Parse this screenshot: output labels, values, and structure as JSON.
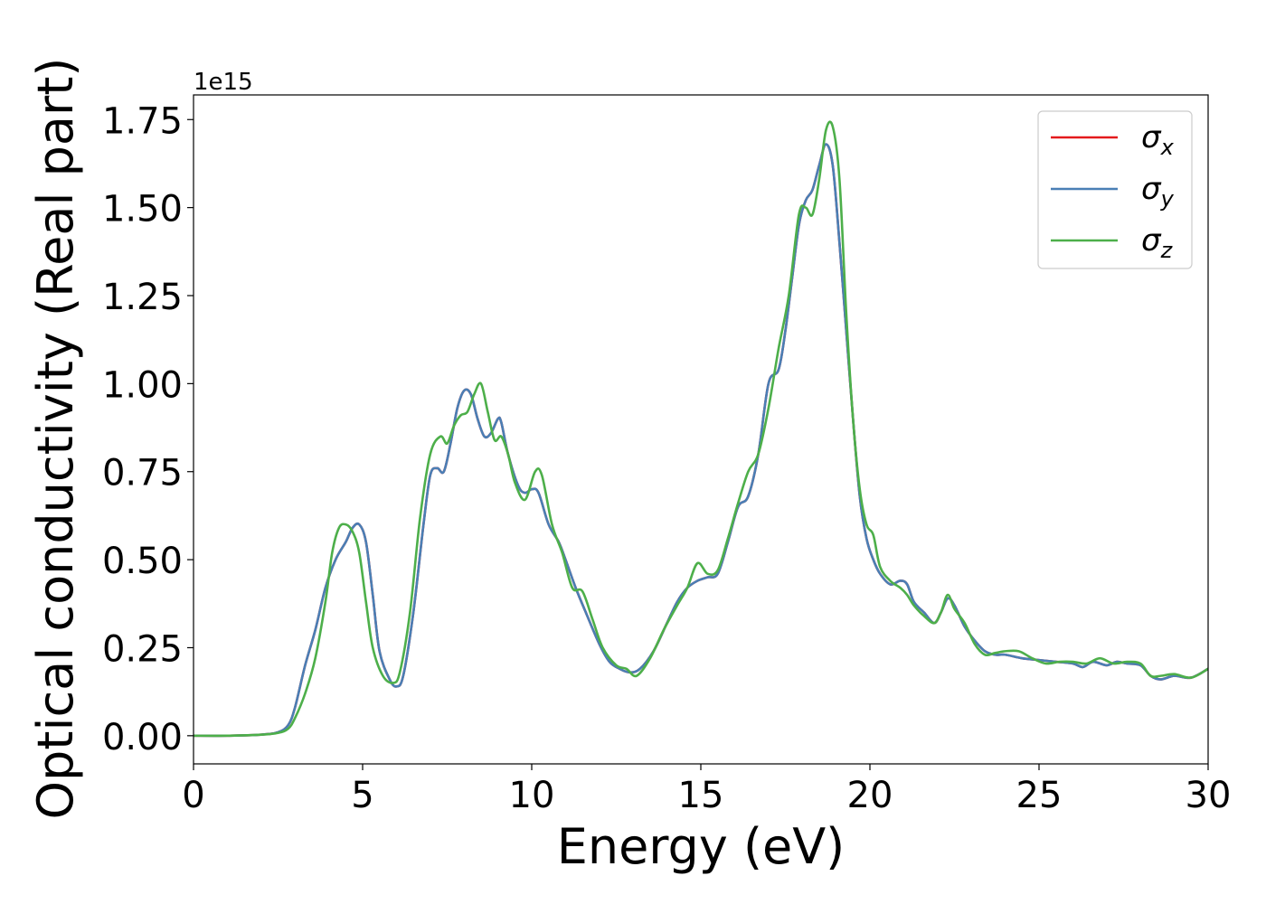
{
  "chart_data": {
    "type": "line",
    "xlabel": "Energy (eV)",
    "ylabel": "Optical conductivity (Real part)",
    "y_offset_label": "1e15",
    "xlim": [
      0,
      30
    ],
    "ylim": [
      -0.08,
      1.82
    ],
    "xticks": [
      0,
      5,
      10,
      15,
      20,
      25,
      30
    ],
    "xtick_labels": [
      "0",
      "5",
      "10",
      "15",
      "20",
      "25",
      "30"
    ],
    "yticks": [
      0.0,
      0.25,
      0.5,
      0.75,
      1.0,
      1.25,
      1.5,
      1.75
    ],
    "ytick_labels": [
      "0.00",
      "0.25",
      "0.50",
      "0.75",
      "1.00",
      "1.25",
      "1.50",
      "1.75"
    ],
    "grid": false,
    "legend_position": "top-right",
    "series": [
      {
        "name": "σx",
        "legend_symbol": "σ",
        "legend_sub": "x",
        "color": "#e41a1c",
        "x": [
          0,
          1,
          2,
          2.5,
          2.8,
          3.0,
          3.3,
          3.6,
          3.9,
          4.2,
          4.5,
          4.7,
          4.9,
          5.1,
          5.3,
          5.5,
          5.8,
          6.0,
          6.2,
          6.5,
          6.8,
          7.0,
          7.2,
          7.4,
          7.6,
          7.8,
          8.0,
          8.2,
          8.4,
          8.6,
          8.8,
          9.0,
          9.1,
          9.3,
          9.6,
          9.8,
          10.0,
          10.2,
          10.5,
          10.8,
          11.0,
          11.3,
          11.6,
          12.0,
          12.3,
          12.6,
          12.9,
          13.2,
          13.6,
          14.0,
          14.3,
          14.6,
          14.9,
          15.2,
          15.5,
          15.8,
          16.1,
          16.4,
          16.7,
          17.0,
          17.3,
          17.5,
          17.7,
          17.9,
          18.1,
          18.3,
          18.5,
          18.7,
          18.9,
          19.1,
          19.3,
          19.5,
          19.7,
          19.9,
          20.1,
          20.3,
          20.6,
          20.9,
          21.1,
          21.3,
          21.6,
          21.9,
          22.1,
          22.3,
          22.5,
          22.8,
          23.1,
          23.4,
          23.7,
          24.0,
          24.5,
          25.0,
          25.5,
          26.0,
          26.3,
          26.6,
          27.0,
          27.3,
          27.6,
          28.0,
          28.3,
          28.6,
          29.0,
          29.5,
          30.0
        ],
        "values": [
          0.0,
          0.0,
          0.003,
          0.01,
          0.03,
          0.08,
          0.2,
          0.3,
          0.42,
          0.5,
          0.55,
          0.59,
          0.6,
          0.55,
          0.4,
          0.24,
          0.16,
          0.14,
          0.17,
          0.35,
          0.6,
          0.74,
          0.76,
          0.75,
          0.83,
          0.93,
          0.98,
          0.97,
          0.9,
          0.85,
          0.86,
          0.9,
          0.89,
          0.8,
          0.71,
          0.69,
          0.7,
          0.69,
          0.6,
          0.55,
          0.5,
          0.42,
          0.35,
          0.26,
          0.21,
          0.19,
          0.18,
          0.19,
          0.24,
          0.32,
          0.38,
          0.42,
          0.44,
          0.45,
          0.46,
          0.55,
          0.65,
          0.68,
          0.8,
          1.0,
          1.04,
          1.15,
          1.3,
          1.45,
          1.52,
          1.55,
          1.62,
          1.68,
          1.62,
          1.4,
          1.15,
          0.9,
          0.68,
          0.56,
          0.5,
          0.46,
          0.43,
          0.44,
          0.43,
          0.38,
          0.35,
          0.32,
          0.35,
          0.39,
          0.37,
          0.31,
          0.27,
          0.24,
          0.23,
          0.23,
          0.22,
          0.215,
          0.21,
          0.205,
          0.195,
          0.21,
          0.2,
          0.21,
          0.205,
          0.2,
          0.17,
          0.16,
          0.17,
          0.165,
          0.19
        ]
      },
      {
        "name": "σy",
        "legend_symbol": "σ",
        "legend_sub": "y",
        "color": "#4a7fb5",
        "x": [
          0,
          1,
          2,
          2.5,
          2.8,
          3.0,
          3.3,
          3.6,
          3.9,
          4.2,
          4.5,
          4.7,
          4.9,
          5.1,
          5.3,
          5.5,
          5.8,
          6.0,
          6.2,
          6.5,
          6.8,
          7.0,
          7.2,
          7.4,
          7.6,
          7.8,
          8.0,
          8.2,
          8.4,
          8.6,
          8.8,
          9.0,
          9.1,
          9.3,
          9.6,
          9.8,
          10.0,
          10.2,
          10.5,
          10.8,
          11.0,
          11.3,
          11.6,
          12.0,
          12.3,
          12.6,
          12.9,
          13.2,
          13.6,
          14.0,
          14.3,
          14.6,
          14.9,
          15.2,
          15.5,
          15.8,
          16.1,
          16.4,
          16.7,
          17.0,
          17.3,
          17.5,
          17.7,
          17.9,
          18.1,
          18.3,
          18.5,
          18.7,
          18.9,
          19.1,
          19.3,
          19.5,
          19.7,
          19.9,
          20.1,
          20.3,
          20.6,
          20.9,
          21.1,
          21.3,
          21.6,
          21.9,
          22.1,
          22.3,
          22.5,
          22.8,
          23.1,
          23.4,
          23.7,
          24.0,
          24.5,
          25.0,
          25.5,
          26.0,
          26.3,
          26.6,
          27.0,
          27.3,
          27.6,
          28.0,
          28.3,
          28.6,
          29.0,
          29.5,
          30.0
        ],
        "values": [
          0.0,
          0.0,
          0.003,
          0.01,
          0.03,
          0.08,
          0.2,
          0.3,
          0.42,
          0.5,
          0.55,
          0.59,
          0.6,
          0.55,
          0.4,
          0.24,
          0.16,
          0.14,
          0.17,
          0.35,
          0.6,
          0.74,
          0.76,
          0.75,
          0.83,
          0.93,
          0.98,
          0.97,
          0.9,
          0.85,
          0.86,
          0.9,
          0.89,
          0.8,
          0.71,
          0.69,
          0.7,
          0.69,
          0.6,
          0.55,
          0.5,
          0.42,
          0.35,
          0.26,
          0.21,
          0.19,
          0.18,
          0.19,
          0.24,
          0.32,
          0.38,
          0.42,
          0.44,
          0.45,
          0.46,
          0.55,
          0.65,
          0.68,
          0.8,
          1.0,
          1.04,
          1.15,
          1.3,
          1.45,
          1.52,
          1.55,
          1.62,
          1.68,
          1.62,
          1.4,
          1.15,
          0.9,
          0.68,
          0.56,
          0.5,
          0.46,
          0.43,
          0.44,
          0.43,
          0.38,
          0.35,
          0.32,
          0.35,
          0.39,
          0.37,
          0.31,
          0.27,
          0.24,
          0.23,
          0.23,
          0.22,
          0.215,
          0.21,
          0.205,
          0.195,
          0.21,
          0.2,
          0.21,
          0.205,
          0.2,
          0.17,
          0.16,
          0.17,
          0.165,
          0.19
        ]
      },
      {
        "name": "σz",
        "legend_symbol": "σ",
        "legend_sub": "z",
        "color": "#4daf4a",
        "x": [
          0,
          1,
          2,
          2.5,
          2.8,
          3.0,
          3.3,
          3.6,
          3.9,
          4.1,
          4.3,
          4.5,
          4.7,
          4.9,
          5.1,
          5.3,
          5.6,
          5.9,
          6.1,
          6.4,
          6.7,
          7.0,
          7.3,
          7.5,
          7.7,
          7.9,
          8.1,
          8.3,
          8.5,
          8.7,
          8.9,
          9.1,
          9.3,
          9.5,
          9.8,
          10.1,
          10.3,
          10.6,
          10.9,
          11.2,
          11.5,
          11.8,
          12.1,
          12.5,
          12.8,
          13.1,
          13.5,
          13.9,
          14.3,
          14.6,
          14.9,
          15.2,
          15.5,
          15.8,
          16.1,
          16.4,
          16.7,
          17.0,
          17.3,
          17.6,
          17.9,
          18.1,
          18.3,
          18.5,
          18.7,
          18.9,
          19.1,
          19.3,
          19.5,
          19.7,
          19.9,
          20.1,
          20.3,
          20.6,
          20.9,
          21.1,
          21.3,
          21.6,
          21.9,
          22.1,
          22.3,
          22.5,
          22.8,
          23.1,
          23.4,
          23.7,
          24.0,
          24.4,
          24.8,
          25.2,
          25.6,
          26.0,
          26.4,
          26.8,
          27.2,
          27.6,
          28.0,
          28.3,
          28.6,
          29.0,
          29.5,
          30.0
        ],
        "values": [
          0.0,
          0.0,
          0.003,
          0.008,
          0.02,
          0.05,
          0.12,
          0.22,
          0.38,
          0.52,
          0.59,
          0.6,
          0.58,
          0.52,
          0.38,
          0.25,
          0.17,
          0.15,
          0.18,
          0.35,
          0.62,
          0.8,
          0.85,
          0.83,
          0.88,
          0.91,
          0.92,
          0.97,
          1.0,
          0.92,
          0.84,
          0.85,
          0.8,
          0.72,
          0.67,
          0.75,
          0.74,
          0.6,
          0.52,
          0.42,
          0.41,
          0.33,
          0.25,
          0.2,
          0.19,
          0.17,
          0.22,
          0.3,
          0.37,
          0.42,
          0.49,
          0.46,
          0.47,
          0.56,
          0.66,
          0.75,
          0.8,
          0.93,
          1.1,
          1.25,
          1.48,
          1.5,
          1.48,
          1.58,
          1.72,
          1.73,
          1.58,
          1.2,
          0.9,
          0.7,
          0.6,
          0.57,
          0.48,
          0.44,
          0.42,
          0.4,
          0.37,
          0.34,
          0.32,
          0.35,
          0.4,
          0.36,
          0.32,
          0.26,
          0.23,
          0.235,
          0.24,
          0.24,
          0.22,
          0.205,
          0.21,
          0.21,
          0.205,
          0.22,
          0.205,
          0.21,
          0.205,
          0.17,
          0.17,
          0.175,
          0.165,
          0.19
        ]
      }
    ]
  }
}
